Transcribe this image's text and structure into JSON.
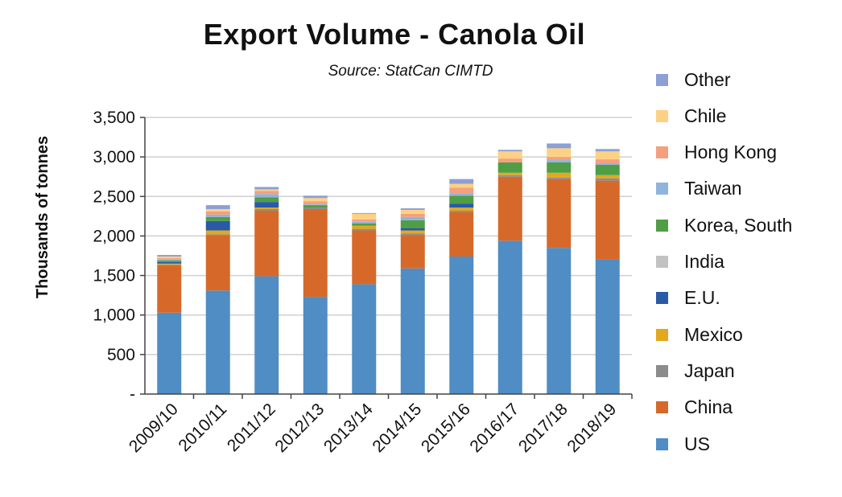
{
  "chart_data": {
    "type": "bar",
    "stacked": true,
    "title": "Export Volume - Canola Oil",
    "subtitle": "Source: StatCan CIMTD",
    "ylabel": "Thousands of tonnes",
    "xlabel": "",
    "ylim": [
      0,
      3500
    ],
    "yticks": [
      0,
      500,
      1000,
      1500,
      2000,
      2500,
      3000,
      3500
    ],
    "ytick_labels": [
      "-",
      "500",
      "1,000",
      "1,500",
      "2,000",
      "2,500",
      "3,000",
      "3,500"
    ],
    "grid": true,
    "legend_position": "right",
    "categories": [
      "2009/10",
      "2010/11",
      "2011/12",
      "2012/13",
      "2013/14",
      "2014/15",
      "2015/16",
      "2016/17",
      "2017/18",
      "2018/19"
    ],
    "series": [
      {
        "name": "US",
        "color": "#4f8dc4",
        "values": [
          1030,
          1310,
          1490,
          1230,
          1390,
          1590,
          1740,
          1940,
          1850,
          1700
        ]
      },
      {
        "name": "China",
        "color": "#d6692a",
        "values": [
          600,
          700,
          830,
          1110,
          680,
          420,
          560,
          810,
          870,
          1000
        ]
      },
      {
        "name": "Japan",
        "color": "#8c8c8c",
        "values": [
          10,
          10,
          20,
          20,
          20,
          20,
          20,
          20,
          20,
          30
        ]
      },
      {
        "name": "Mexico",
        "color": "#e3a81d",
        "values": [
          10,
          50,
          20,
          0,
          40,
          40,
          40,
          30,
          60,
          40
        ]
      },
      {
        "name": "E.U.",
        "color": "#2a5aa6",
        "values": [
          20,
          120,
          70,
          0,
          0,
          30,
          50,
          0,
          0,
          0
        ]
      },
      {
        "name": "India",
        "color": "#c2c2c2",
        "values": [
          0,
          0,
          0,
          0,
          0,
          0,
          0,
          0,
          0,
          0
        ]
      },
      {
        "name": "Korea, South",
        "color": "#4f9e45",
        "values": [
          20,
          50,
          60,
          30,
          30,
          100,
          100,
          130,
          130,
          130
        ]
      },
      {
        "name": "Taiwan",
        "color": "#8fb4de",
        "values": [
          10,
          30,
          40,
          10,
          20,
          40,
          30,
          0,
          30,
          20
        ]
      },
      {
        "name": "Hong Kong",
        "color": "#f4a07f",
        "values": [
          20,
          40,
          40,
          40,
          30,
          40,
          70,
          50,
          40,
          50
        ]
      },
      {
        "name": "Chile",
        "color": "#fdd183",
        "values": [
          20,
          30,
          20,
          40,
          70,
          50,
          50,
          90,
          110,
          100
        ]
      },
      {
        "name": "Other",
        "color": "#8da0d5",
        "values": [
          20,
          50,
          30,
          30,
          10,
          20,
          60,
          20,
          60,
          30
        ]
      }
    ]
  }
}
